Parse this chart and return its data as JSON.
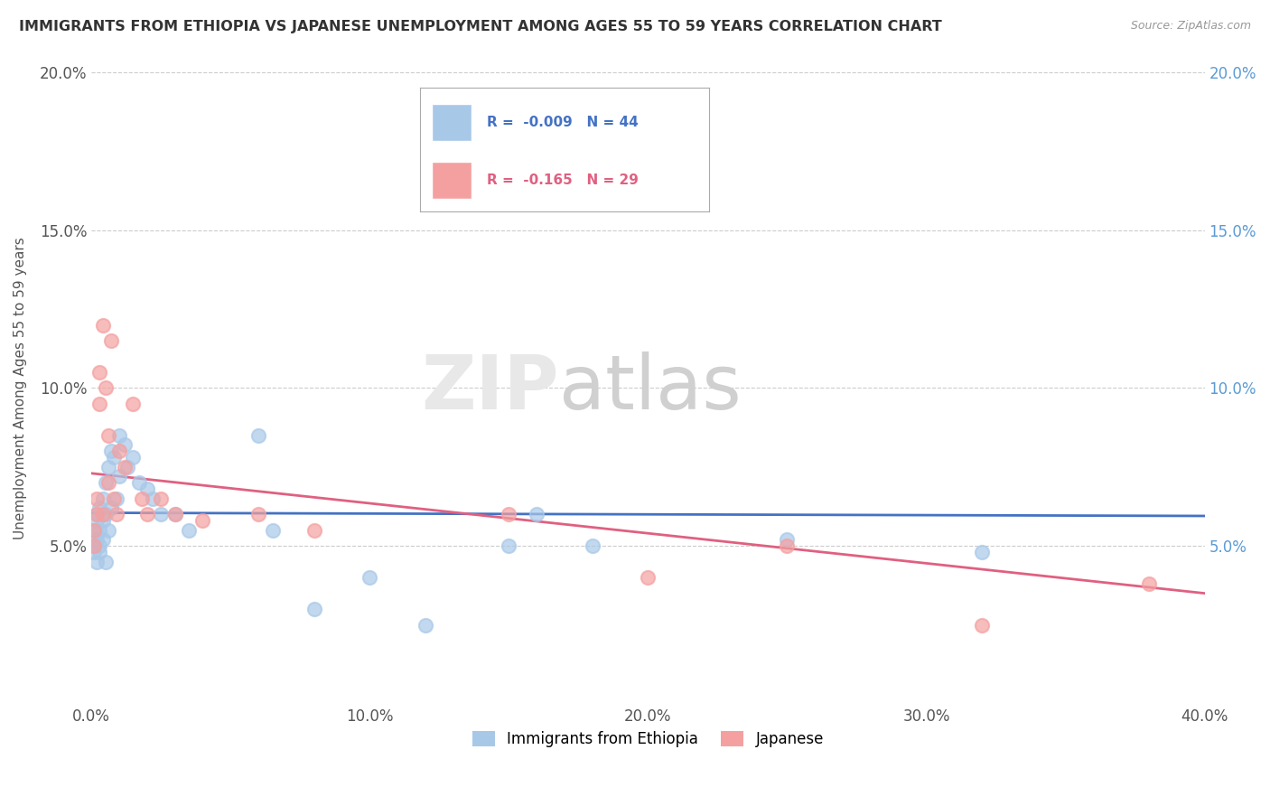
{
  "title": "IMMIGRANTS FROM ETHIOPIA VS JAPANESE UNEMPLOYMENT AMONG AGES 55 TO 59 YEARS CORRELATION CHART",
  "source": "Source: ZipAtlas.com",
  "ylabel": "Unemployment Among Ages 55 to 59 years",
  "xlim": [
    0.0,
    0.4
  ],
  "ylim": [
    0.0,
    0.2
  ],
  "xticks": [
    0.0,
    0.1,
    0.2,
    0.3,
    0.4
  ],
  "yticks": [
    0.05,
    0.1,
    0.15,
    0.2
  ],
  "xticklabels": [
    "0.0%",
    "10.0%",
    "20.0%",
    "30.0%",
    "40.0%"
  ],
  "yticklabels": [
    "5.0%",
    "10.0%",
    "15.0%",
    "20.0%"
  ],
  "right_yticklabels": [
    "5.0%",
    "10.0%",
    "15.0%",
    "20.0%"
  ],
  "series1_color": "#a8c8e8",
  "series2_color": "#f4a0a0",
  "trendline1_color": "#4472c4",
  "trendline2_color": "#e06080",
  "legend1_label": "R =  -0.009   N = 44",
  "legend2_label": "R =  -0.165   N = 29",
  "legend_series1": "Immigrants from Ethiopia",
  "legend_series2": "Japanese",
  "background_color": "#ffffff",
  "grid_color": "#cccccc",
  "series1_x": [
    0.001,
    0.001,
    0.001,
    0.002,
    0.002,
    0.002,
    0.002,
    0.003,
    0.003,
    0.003,
    0.003,
    0.004,
    0.004,
    0.004,
    0.005,
    0.005,
    0.005,
    0.006,
    0.006,
    0.007,
    0.007,
    0.008,
    0.009,
    0.01,
    0.01,
    0.012,
    0.013,
    0.015,
    0.017,
    0.02,
    0.022,
    0.025,
    0.03,
    0.035,
    0.06,
    0.065,
    0.08,
    0.1,
    0.12,
    0.15,
    0.16,
    0.18,
    0.25,
    0.32
  ],
  "series1_y": [
    0.05,
    0.055,
    0.048,
    0.052,
    0.06,
    0.045,
    0.058,
    0.05,
    0.055,
    0.062,
    0.048,
    0.065,
    0.058,
    0.052,
    0.07,
    0.06,
    0.045,
    0.075,
    0.055,
    0.08,
    0.062,
    0.078,
    0.065,
    0.085,
    0.072,
    0.082,
    0.075,
    0.078,
    0.07,
    0.068,
    0.065,
    0.06,
    0.06,
    0.055,
    0.085,
    0.055,
    0.03,
    0.04,
    0.025,
    0.05,
    0.06,
    0.05,
    0.052,
    0.048
  ],
  "series2_x": [
    0.001,
    0.001,
    0.002,
    0.002,
    0.003,
    0.003,
    0.004,
    0.004,
    0.005,
    0.006,
    0.006,
    0.007,
    0.008,
    0.009,
    0.01,
    0.012,
    0.015,
    0.018,
    0.02,
    0.025,
    0.03,
    0.04,
    0.06,
    0.08,
    0.15,
    0.2,
    0.25,
    0.32,
    0.38
  ],
  "series2_y": [
    0.055,
    0.05,
    0.065,
    0.06,
    0.095,
    0.105,
    0.06,
    0.12,
    0.1,
    0.085,
    0.07,
    0.115,
    0.065,
    0.06,
    0.08,
    0.075,
    0.095,
    0.065,
    0.06,
    0.065,
    0.06,
    0.058,
    0.06,
    0.055,
    0.06,
    0.04,
    0.05,
    0.025,
    0.038
  ],
  "trendline1_x0": 0.0,
  "trendline1_x1": 0.4,
  "trendline1_y0": 0.0605,
  "trendline1_y1": 0.0595,
  "trendline2_x0": 0.0,
  "trendline2_x1": 0.4,
  "trendline2_y0": 0.073,
  "trendline2_y1": 0.035
}
